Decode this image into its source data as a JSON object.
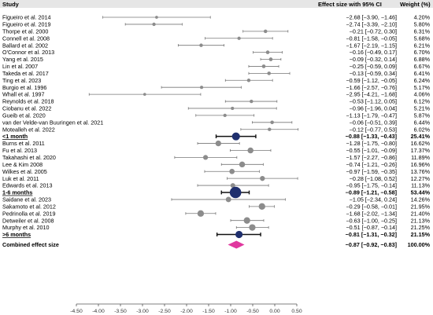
{
  "chart_data": {
    "type": "forest",
    "headers": {
      "study": "Study",
      "effect": "Effect size with 95% CI",
      "weight": "Weight (%)"
    },
    "xlim": [
      -4.5,
      0.5
    ],
    "xticks": [
      "-4.50",
      "-4.00",
      "-3.50",
      "-3.00",
      "-2.50",
      "-2.00",
      "-1.50",
      "-1.00",
      "-0.50",
      "0.00",
      "0.50"
    ],
    "rows": [
      {
        "label": "Figueiro et al. 2014",
        "est": -2.68,
        "lo": -3.9,
        "hi": -1.46,
        "ci": "−2.68 [−3.90, −1.46]",
        "weight": "4.20%",
        "kind": "study",
        "w": 4.2
      },
      {
        "label": "Figueiro et al. 2019",
        "est": -2.74,
        "lo": -3.39,
        "hi": -2.1,
        "ci": "−2.74 [−3.39, −2.10]",
        "weight": "5.80%",
        "kind": "study",
        "w": 5.8
      },
      {
        "label": "Thorpe et al. 2000",
        "est": -0.21,
        "lo": -0.72,
        "hi": 0.3,
        "ci": "−0.21 [−0.72, 0.30]",
        "weight": "6.31%",
        "kind": "study",
        "w": 6.31
      },
      {
        "label": "Connell et al. 2008",
        "est": -0.81,
        "lo": -1.58,
        "hi": -0.05,
        "ci": "−0.81 [−1.58, −0.05]",
        "weight": "5.68%",
        "kind": "study",
        "w": 5.68
      },
      {
        "label": "Ballard et al. 2002",
        "est": -1.67,
        "lo": -2.19,
        "hi": -1.15,
        "ci": "−1.67 [−2.19, −1.15]",
        "weight": "6.21%",
        "kind": "study",
        "w": 6.21
      },
      {
        "label": "O'Connor et al. 2013",
        "est": -0.16,
        "lo": -0.49,
        "hi": 0.17,
        "ci": "−0.16 [−0.49, 0.17]",
        "weight": "6.70%",
        "kind": "study",
        "w": 6.7
      },
      {
        "label": "Yang et al. 2015",
        "est": -0.09,
        "lo": -0.32,
        "hi": 0.14,
        "ci": "−0.09 [−0.32, 0.14]",
        "weight": "6.88%",
        "kind": "study",
        "w": 6.88
      },
      {
        "label": "Lin et al. 2007",
        "est": -0.25,
        "lo": -0.59,
        "hi": 0.09,
        "ci": "−0.25 [−0.59, 0.09]",
        "weight": "6.67%",
        "kind": "study",
        "w": 6.67
      },
      {
        "label": "Takeda et al. 2017",
        "est": -0.13,
        "lo": -0.59,
        "hi": 0.34,
        "ci": "−0.13 [−0.59, 0.34]",
        "weight": "6.41%",
        "kind": "study",
        "w": 6.41
      },
      {
        "label": "Ting et al. 2023",
        "est": -0.59,
        "lo": -1.12,
        "hi": -0.05,
        "ci": "−0.59 [−1.12, −0.05]",
        "weight": "6.24%",
        "kind": "study",
        "w": 6.24
      },
      {
        "label": "Burgio et al. 1996",
        "est": -1.66,
        "lo": -2.57,
        "hi": -0.76,
        "ci": "−1.66 [−2.57, −0.76]",
        "weight": "5.17%",
        "kind": "study",
        "w": 5.17
      },
      {
        "label": "Whall et al. 1997",
        "est": -2.95,
        "lo": -4.21,
        "hi": -1.68,
        "ci": "−2.95 [−4.21, −1.68]",
        "weight": "4.06%",
        "kind": "study",
        "w": 4.06
      },
      {
        "label": "Reynolds et al. 2018",
        "est": -0.53,
        "lo": -1.12,
        "hi": 0.05,
        "ci": "−0.53 [−1.12, 0.05]",
        "weight": "6.12%",
        "kind": "study",
        "w": 6.12
      },
      {
        "label": "Ciobanu et al. 2022",
        "est": -0.96,
        "lo": -1.96,
        "hi": 0.04,
        "ci": "−0.96 [−1.96, 0.04]",
        "weight": "5.21%",
        "kind": "study",
        "w": 5.21
      },
      {
        "label": "Gueib et al. 2020",
        "est": -1.13,
        "lo": -1.79,
        "hi": -0.47,
        "ci": "−1.13 [−1.79, −0.47]",
        "weight": "5.87%",
        "kind": "study",
        "w": 5.87
      },
      {
        "label": "van der Velde-van Buuringen et al. 2021",
        "est": -0.06,
        "lo": -0.51,
        "hi": 0.39,
        "ci": "−0.06 [−0.51, 0.39]",
        "weight": "6.44%",
        "kind": "study",
        "w": 6.44
      },
      {
        "label": "Motealleh et al. 2022",
        "est": -0.12,
        "lo": -0.77,
        "hi": 0.53,
        "ci": "−0.12 [−0.77, 0.53]",
        "weight": "6.02%",
        "kind": "study",
        "w": 6.02
      },
      {
        "label": "<1 month",
        "est": -0.88,
        "lo": -1.33,
        "hi": -0.43,
        "ci": "−0.88 [−1.33, −0.43]",
        "weight": "25.41%",
        "kind": "subtotal"
      },
      {
        "label": "Burns et al. 2011",
        "est": -1.28,
        "lo": -1.75,
        "hi": -0.8,
        "ci": "−1.28 [−1.75, −0.80]",
        "weight": "16.62%",
        "kind": "study",
        "w": 16.62
      },
      {
        "label": "Fu et al. 2013",
        "est": -0.55,
        "lo": -1.01,
        "hi": -0.09,
        "ci": "−0.55 [−1.01, −0.09]",
        "weight": "17.37%",
        "kind": "study",
        "w": 17.37
      },
      {
        "label": "Takahashi et al. 2020",
        "est": -1.57,
        "lo": -2.27,
        "hi": -0.86,
        "ci": "−1.57 [−2.27, −0.86]",
        "weight": "11.89%",
        "kind": "study",
        "w": 11.89
      },
      {
        "label": "Lee & Kim 2008",
        "est": -0.74,
        "lo": -1.21,
        "hi": -0.26,
        "ci": "−0.74 [−1.21, −0.26]",
        "weight": "16.96%",
        "kind": "study",
        "w": 16.96
      },
      {
        "label": "Wilkes et al. 2005",
        "est": -0.97,
        "lo": -1.59,
        "hi": -0.35,
        "ci": "−0.97 [−1.59, −0.35]",
        "weight": "13.76%",
        "kind": "study",
        "w": 13.76
      },
      {
        "label": "Luk et al. 2011",
        "est": -0.28,
        "lo": -1.08,
        "hi": 0.52,
        "ci": "−0.28 [−1.08, 0.52]",
        "weight": "12.27%",
        "kind": "study",
        "w": 12.27
      },
      {
        "label": "Edwards et al. 2013",
        "est": -0.95,
        "lo": -1.75,
        "hi": -0.14,
        "ci": "−0.95 [−1.75, −0.14]",
        "weight": "11.13%",
        "kind": "study",
        "w": 11.13
      },
      {
        "label": "1-6 months",
        "est": -0.89,
        "lo": -1.21,
        "hi": -0.58,
        "ci": "−0.89 [−1.21, −0.58]",
        "weight": "53.44%",
        "kind": "subtotal"
      },
      {
        "label": "Saidane et al. 2023",
        "est": -1.05,
        "lo": -2.34,
        "hi": 0.24,
        "ci": "−1.05 [−2.34, 0.24]",
        "weight": "14.26%",
        "kind": "study",
        "w": 14.26
      },
      {
        "label": "Sakamoto et al. 2012",
        "est": -0.29,
        "lo": -0.58,
        "hi": -0.01,
        "ci": "−0.29 [−0.58, −0.01]",
        "weight": "21.95%",
        "kind": "study",
        "w": 21.95
      },
      {
        "label": "Pedrinolla et al. 2019",
        "est": -1.68,
        "lo": -2.02,
        "hi": -1.34,
        "ci": "−1.68 [−2.02, −1.34]",
        "weight": "21.40%",
        "kind": "study",
        "w": 21.4
      },
      {
        "label": "Detweiler et al. 2008",
        "est": -0.63,
        "lo": -1.0,
        "hi": -0.25,
        "ci": "−0.63 [−1.00, −0.25]",
        "weight": "21.13%",
        "kind": "study",
        "w": 21.13
      },
      {
        "label": "Murphy et al. 2010",
        "est": -0.51,
        "lo": -0.87,
        "hi": -0.14,
        "ci": "−0.51 [−0.87, −0.14]",
        "weight": "21.25%",
        "kind": "study",
        "w": 21.25
      },
      {
        "label": ">6 months",
        "est": -0.81,
        "lo": -1.31,
        "hi": -0.32,
        "ci": "−0.81 [−1.31, −0.32]",
        "weight": "21.15%",
        "kind": "subtotal"
      }
    ],
    "combined": {
      "label": "Combined effect size",
      "est": -0.87,
      "lo": -0.92,
      "hi": -0.83,
      "ci": "−0.87 [−0.92, −0.83]",
      "weight": "100.00%"
    },
    "colors": {
      "study": "#8c8c8c",
      "subtotal": "#1f2f6e",
      "combined": "#e0389f",
      "line": "#666666",
      "header_bg": "#e6e6e6"
    }
  }
}
